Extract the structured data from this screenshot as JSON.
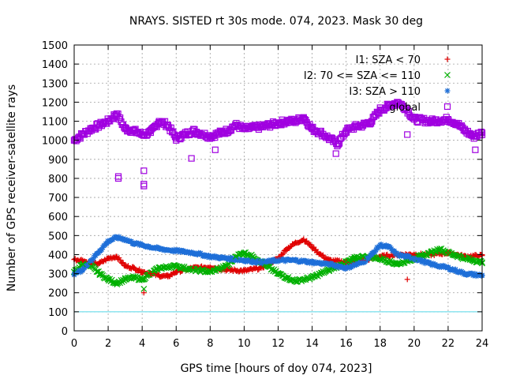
{
  "chart_data": {
    "type": "scatter",
    "title": "NRAYS. SISTED rt 30s mode. 074, 2023. Mask 30 deg",
    "xlabel": "GPS time [hours of doy 074, 2023]",
    "ylabel": "Number of GPS receiver-satellite rays",
    "xlim": [
      0,
      24
    ],
    "ylim": [
      0,
      1500
    ],
    "xticks": [
      0,
      2,
      4,
      6,
      8,
      10,
      12,
      14,
      16,
      18,
      20,
      22,
      24
    ],
    "yticks": [
      0,
      100,
      200,
      300,
      400,
      500,
      600,
      700,
      800,
      900,
      1000,
      1100,
      1200,
      1300,
      1400,
      1500
    ],
    "grid": true,
    "legend_position": "top-right",
    "reference_line": {
      "y": 100,
      "color": "#55d6e6"
    },
    "series": [
      {
        "name": "I1: SZA < 70",
        "marker": "+",
        "color": "#e00000",
        "x": [
          0,
          0.5,
          1,
          1.5,
          2,
          2.5,
          3,
          3.5,
          4,
          4.5,
          5,
          5.5,
          6,
          7,
          8,
          9,
          10,
          11,
          12,
          12.5,
          13,
          13.5,
          14,
          14.5,
          15,
          16,
          17,
          18,
          19,
          20,
          21,
          22,
          23,
          24
        ],
        "values": [
          375,
          370,
          350,
          355,
          380,
          390,
          340,
          330,
          310,
          300,
          290,
          285,
          310,
          330,
          335,
          320,
          315,
          330,
          380,
          430,
          460,
          480,
          440,
          400,
          370,
          360,
          370,
          390,
          400,
          400,
          400,
          410,
          390,
          395
        ]
      },
      {
        "name": "I2: 70 <= SZA <= 110",
        "marker": "x",
        "color": "#00b000",
        "x": [
          0,
          0.5,
          1,
          1.5,
          2,
          2.5,
          3,
          3.5,
          4,
          5,
          6,
          7,
          8,
          9,
          9.5,
          10,
          10.5,
          11,
          12,
          13,
          14,
          15,
          16,
          16.5,
          17,
          18,
          19,
          20,
          21,
          21.5,
          22,
          23,
          24
        ],
        "values": [
          310,
          350,
          340,
          300,
          270,
          250,
          270,
          280,
          270,
          330,
          340,
          320,
          310,
          340,
          390,
          410,
          390,
          360,
          300,
          260,
          280,
          320,
          360,
          380,
          390,
          380,
          350,
          380,
          410,
          430,
          410,
          380,
          360
        ]
      },
      {
        "name": "I3: SZA > 110",
        "marker": "*",
        "color": "#1e6fd8",
        "x": [
          0,
          0.5,
          1,
          1.5,
          2,
          2.5,
          3,
          3.5,
          4,
          5,
          6,
          7,
          8,
          9,
          10,
          11,
          12,
          13,
          14,
          15,
          16,
          17,
          17.5,
          18,
          18.5,
          19,
          20,
          21,
          22,
          23,
          24
        ],
        "values": [
          300,
          320,
          370,
          420,
          470,
          490,
          480,
          460,
          450,
          430,
          420,
          410,
          390,
          380,
          370,
          360,
          370,
          370,
          360,
          350,
          330,
          360,
          400,
          450,
          440,
          400,
          380,
          350,
          330,
          300,
          290
        ]
      },
      {
        "name": "global",
        "marker": "square",
        "color": "#a000e0",
        "x": [
          0,
          0.5,
          1,
          1.5,
          2,
          2.5,
          3,
          3.5,
          4,
          4.5,
          5,
          5.5,
          6,
          6.5,
          7,
          8,
          9,
          9.5,
          10,
          11,
          12,
          12.5,
          13,
          13.5,
          14,
          14.5,
          15,
          15.5,
          16,
          16.5,
          17,
          17.5,
          18,
          18.5,
          19,
          19.5,
          20,
          21,
          22,
          22.5,
          23,
          23.5,
          24
        ],
        "values": [
          1000,
          1030,
          1060,
          1080,
          1100,
          1140,
          1060,
          1050,
          1030,
          1040,
          1100,
          1080,
          1010,
          1030,
          1050,
          1020,
          1050,
          1080,
          1060,
          1070,
          1090,
          1100,
          1100,
          1120,
          1060,
          1040,
          1010,
          980,
          1050,
          1070,
          1080,
          1100,
          1160,
          1180,
          1200,
          1170,
          1110,
          1100,
          1110,
          1090,
          1050,
          1020,
          1040
        ]
      }
    ],
    "outliers": [
      {
        "series": "global",
        "x": 2.6,
        "values": [
          810,
          800
        ]
      },
      {
        "series": "global",
        "x": 4.1,
        "values": [
          840,
          770,
          760
        ]
      },
      {
        "series": "global",
        "x": 6.9,
        "values": [
          905
        ]
      },
      {
        "series": "global",
        "x": 8.3,
        "values": [
          950
        ]
      },
      {
        "series": "global",
        "x": 15.4,
        "values": [
          930
        ]
      },
      {
        "series": "global",
        "x": 19.6,
        "values": [
          1030
        ]
      },
      {
        "series": "global",
        "x": 23.6,
        "values": [
          950
        ]
      },
      {
        "series": "I1: SZA < 70",
        "x": 19.6,
        "values": [
          270
        ]
      },
      {
        "series": "I1: SZA < 70",
        "x": 4.1,
        "values": [
          200
        ]
      },
      {
        "series": "I2: 70 <= SZA <= 110",
        "x": 4.1,
        "values": [
          220
        ]
      }
    ]
  }
}
